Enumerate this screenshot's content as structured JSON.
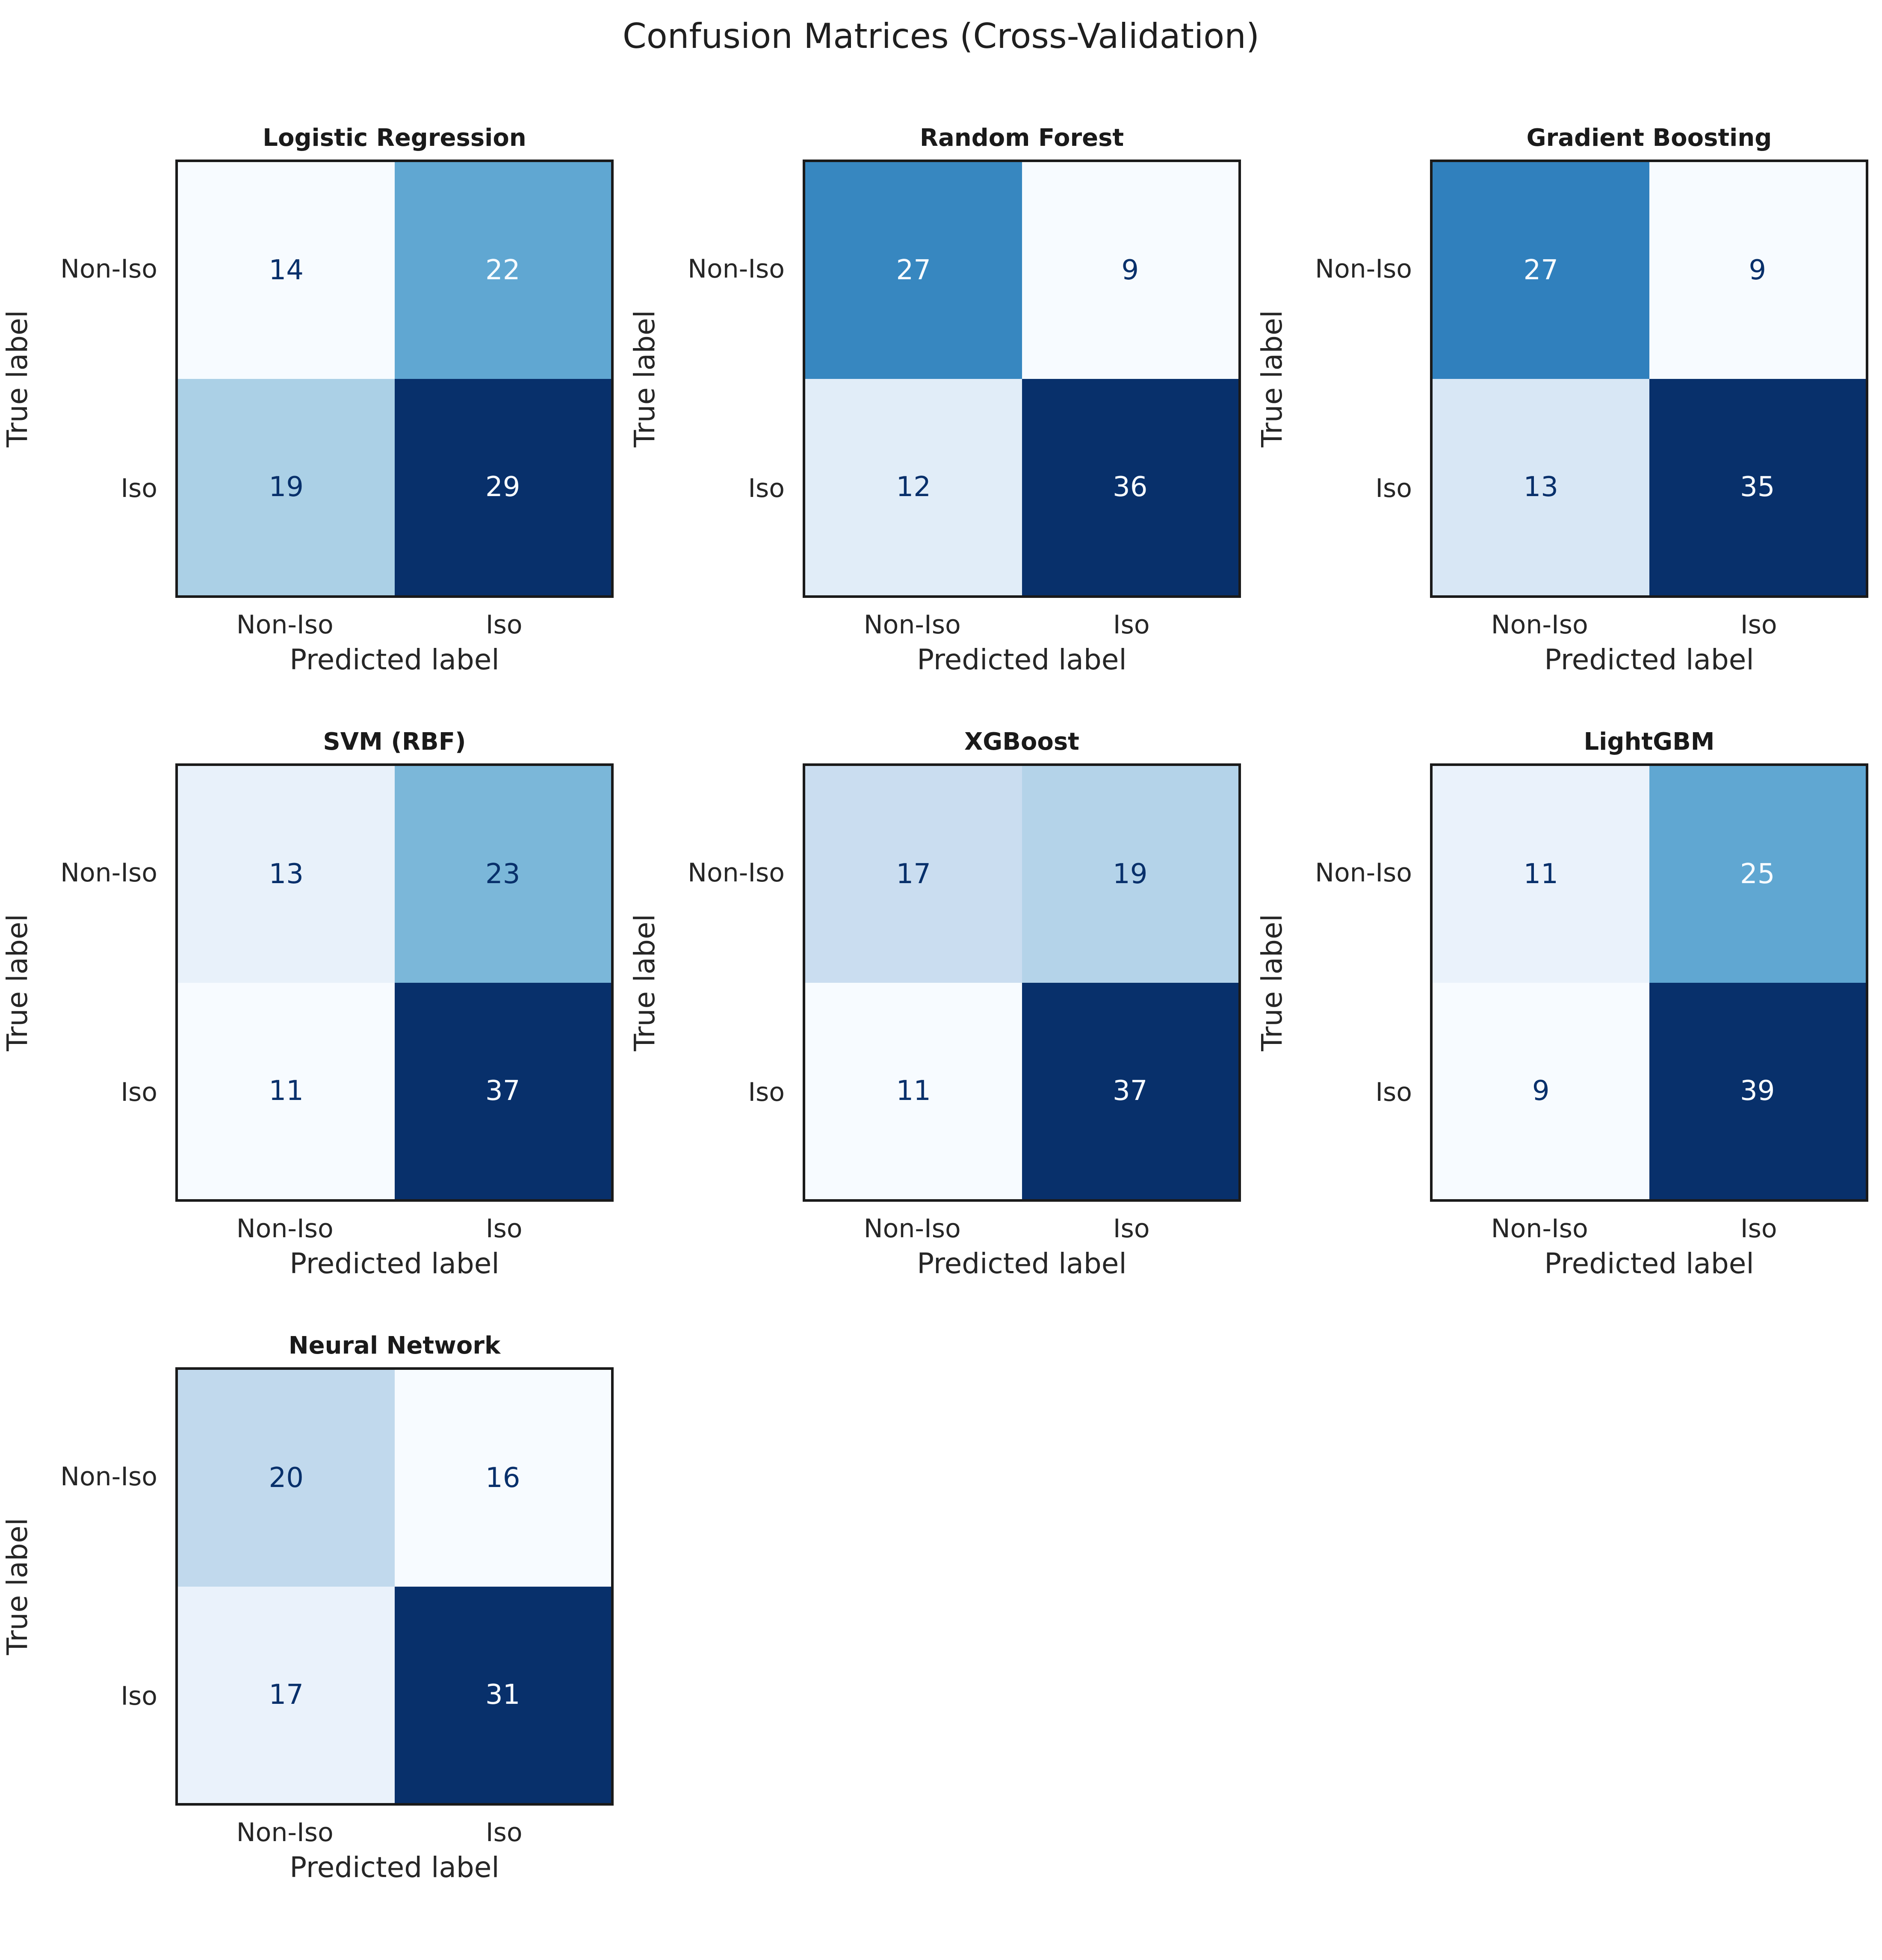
{
  "figure": {
    "title": "Confusion Matrices (Cross-Validation)"
  },
  "colors": {
    "colormap_min": "#f7fbff",
    "colormap_max": "#08306b",
    "border": "#1a1a1a",
    "text": "#262626"
  },
  "chart_data": [
    {
      "type": "heatmap",
      "title": "Logistic Regression",
      "xlabel": "Predicted label",
      "ylabel": "True label",
      "x_ticks": [
        "Non-Iso",
        "Iso"
      ],
      "y_ticks": [
        "Non-Iso",
        "Iso"
      ],
      "matrix": [
        [
          14,
          22
        ],
        [
          19,
          29
        ]
      ],
      "colormap": "Blues",
      "legend": "none",
      "grid": false
    },
    {
      "type": "heatmap",
      "title": "Random Forest",
      "xlabel": "Predicted label",
      "ylabel": "True label",
      "x_ticks": [
        "Non-Iso",
        "Iso"
      ],
      "y_ticks": [
        "Non-Iso",
        "Iso"
      ],
      "matrix": [
        [
          27,
          9
        ],
        [
          12,
          36
        ]
      ],
      "colormap": "Blues",
      "legend": "none",
      "grid": false
    },
    {
      "type": "heatmap",
      "title": "Gradient Boosting",
      "xlabel": "Predicted label",
      "ylabel": "True label",
      "x_ticks": [
        "Non-Iso",
        "Iso"
      ],
      "y_ticks": [
        "Non-Iso",
        "Iso"
      ],
      "matrix": [
        [
          27,
          9
        ],
        [
          13,
          35
        ]
      ],
      "colormap": "Blues",
      "legend": "none",
      "grid": false
    },
    {
      "type": "heatmap",
      "title": "SVM (RBF)",
      "xlabel": "Predicted label",
      "ylabel": "True label",
      "x_ticks": [
        "Non-Iso",
        "Iso"
      ],
      "y_ticks": [
        "Non-Iso",
        "Iso"
      ],
      "matrix": [
        [
          13,
          23
        ],
        [
          11,
          37
        ]
      ],
      "colormap": "Blues",
      "legend": "none",
      "grid": false
    },
    {
      "type": "heatmap",
      "title": "XGBoost",
      "xlabel": "Predicted label",
      "ylabel": "True label",
      "x_ticks": [
        "Non-Iso",
        "Iso"
      ],
      "y_ticks": [
        "Non-Iso",
        "Iso"
      ],
      "matrix": [
        [
          17,
          19
        ],
        [
          11,
          37
        ]
      ],
      "colormap": "Blues",
      "legend": "none",
      "grid": false
    },
    {
      "type": "heatmap",
      "title": "LightGBM",
      "xlabel": "Predicted label",
      "ylabel": "True label",
      "x_ticks": [
        "Non-Iso",
        "Iso"
      ],
      "y_ticks": [
        "Non-Iso",
        "Iso"
      ],
      "matrix": [
        [
          11,
          25
        ],
        [
          9,
          39
        ]
      ],
      "colormap": "Blues",
      "legend": "none",
      "grid": false
    },
    {
      "type": "heatmap",
      "title": "Neural Network",
      "xlabel": "Predicted label",
      "ylabel": "True label",
      "x_ticks": [
        "Non-Iso",
        "Iso"
      ],
      "y_ticks": [
        "Non-Iso",
        "Iso"
      ],
      "matrix": [
        [
          20,
          16
        ],
        [
          17,
          31
        ]
      ],
      "colormap": "Blues",
      "legend": "none",
      "grid": false
    }
  ]
}
